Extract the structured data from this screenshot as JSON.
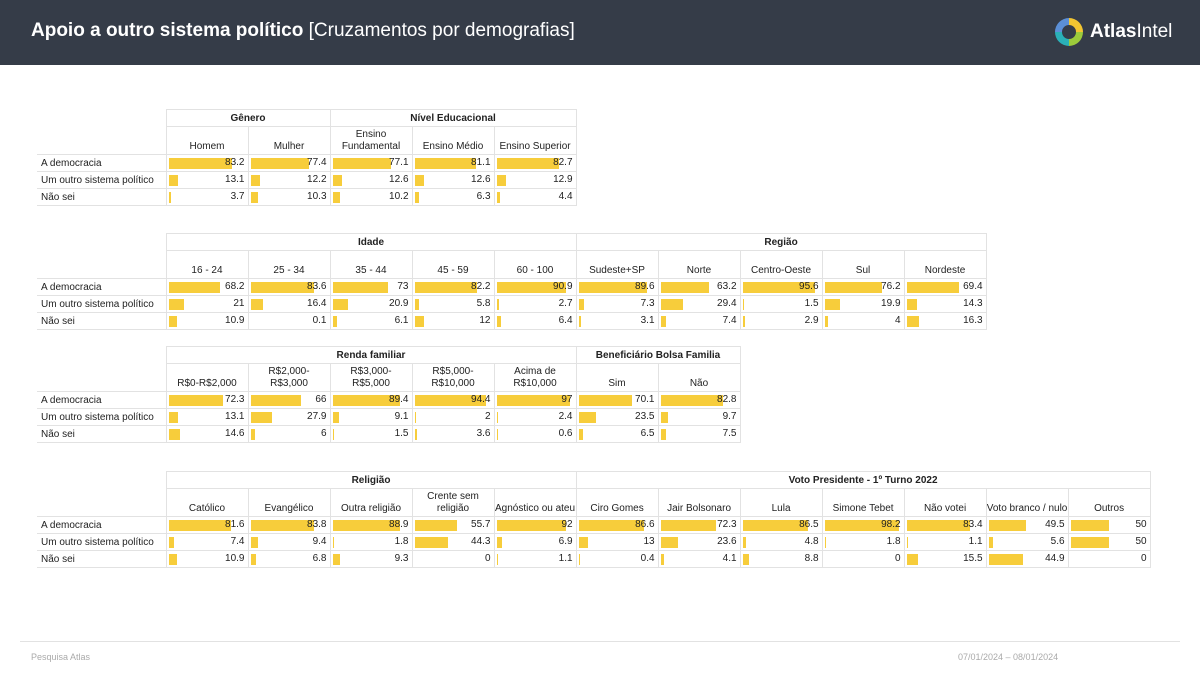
{
  "header": {
    "title_bold": "Apoio a outro sistema político",
    "title_rest": "[Cruzamentos por demografias]",
    "logo_bold": "Atlas",
    "logo_rest": "Intel"
  },
  "footer": {
    "left": "Pesquisa Atlas",
    "right": "07/01/2024 – 08/01/2024"
  },
  "colors": {
    "bar": "#f7cd3b",
    "header_bg": "#353c48"
  },
  "chart_data": [
    {
      "type": "table",
      "rows": [
        "A democracia",
        "Um outro sistema político",
        "Não sei"
      ],
      "groups": [
        {
          "title": "Gênero",
          "columns": [
            {
              "label": "Homem",
              "values": [
                83.2,
                13.1,
                3.7
              ]
            },
            {
              "label": "Mulher",
              "values": [
                77.4,
                12.2,
                10.3
              ]
            }
          ]
        },
        {
          "title": "Nível Educacional",
          "columns": [
            {
              "label": "Ensino Fundamental",
              "values": [
                77.1,
                12.6,
                10.2
              ]
            },
            {
              "label": "Ensino Médio",
              "values": [
                81.1,
                12.6,
                6.3
              ]
            },
            {
              "label": "Ensino Superior",
              "values": [
                82.7,
                12.9,
                4.4
              ]
            }
          ]
        }
      ]
    },
    {
      "type": "table",
      "rows": [
        "A democracia",
        "Um outro sistema político",
        "Não sei"
      ],
      "groups": [
        {
          "title": "Idade",
          "columns": [
            {
              "label": "16 - 24",
              "values": [
                68.2,
                21,
                10.9
              ]
            },
            {
              "label": "25 - 34",
              "values": [
                83.6,
                16.4,
                0.1
              ]
            },
            {
              "label": "35 - 44",
              "values": [
                73,
                20.9,
                6.1
              ]
            },
            {
              "label": "45 - 59",
              "values": [
                82.2,
                5.8,
                12
              ]
            },
            {
              "label": "60 - 100",
              "values": [
                90.9,
                2.7,
                6.4
              ]
            }
          ]
        },
        {
          "title": "Região",
          "columns": [
            {
              "label": "Sudeste+SP",
              "values": [
                89.6,
                7.3,
                3.1
              ]
            },
            {
              "label": "Norte",
              "values": [
                63.2,
                29.4,
                7.4
              ]
            },
            {
              "label": "Centro-Oeste",
              "values": [
                95.6,
                1.5,
                2.9
              ]
            },
            {
              "label": "Sul",
              "values": [
                76.2,
                19.9,
                4
              ]
            },
            {
              "label": "Nordeste",
              "values": [
                69.4,
                14.3,
                16.3
              ]
            }
          ]
        }
      ]
    },
    {
      "type": "table",
      "rows": [
        "A democracia",
        "Um outro sistema político",
        "Não sei"
      ],
      "groups": [
        {
          "title": "Renda familiar",
          "columns": [
            {
              "label": "R$0-R$2,000",
              "values": [
                72.3,
                13.1,
                14.6
              ]
            },
            {
              "label": "R$2,000- R$3,000",
              "values": [
                66,
                27.9,
                6
              ]
            },
            {
              "label": "R$3,000- R$5,000",
              "values": [
                89.4,
                9.1,
                1.5
              ]
            },
            {
              "label": "R$5,000- R$10,000",
              "values": [
                94.4,
                2,
                3.6
              ]
            },
            {
              "label": "Acima de R$10,000",
              "values": [
                97,
                2.4,
                0.6
              ]
            }
          ]
        },
        {
          "title": "Beneficiário Bolsa Familia",
          "columns": [
            {
              "label": "Sim",
              "values": [
                70.1,
                23.5,
                6.5
              ]
            },
            {
              "label": "Não",
              "values": [
                82.8,
                9.7,
                7.5
              ]
            }
          ]
        }
      ]
    },
    {
      "type": "table",
      "rows": [
        "A democracia",
        "Um outro sistema político",
        "Não sei"
      ],
      "groups": [
        {
          "title": "Religião",
          "columns": [
            {
              "label": "Católico",
              "values": [
                81.6,
                7.4,
                10.9
              ]
            },
            {
              "label": "Evangélico",
              "values": [
                83.8,
                9.4,
                6.8
              ]
            },
            {
              "label": "Outra religião",
              "values": [
                88.9,
                1.8,
                9.3
              ]
            },
            {
              "label": "Crente sem religião",
              "values": [
                55.7,
                44.3,
                0
              ]
            },
            {
              "label": "Agnóstico ou ateu",
              "values": [
                92,
                6.9,
                1.1
              ]
            }
          ]
        },
        {
          "title": "Voto Presidente - 1º Turno 2022",
          "columns": [
            {
              "label": "Ciro Gomes",
              "values": [
                86.6,
                13,
                0.4
              ]
            },
            {
              "label": "Jair Bolsonaro",
              "values": [
                72.3,
                23.6,
                4.1
              ]
            },
            {
              "label": "Lula",
              "values": [
                86.5,
                4.8,
                8.8
              ]
            },
            {
              "label": "Simone Tebet",
              "values": [
                98.2,
                1.8,
                0
              ]
            },
            {
              "label": "Não votei",
              "values": [
                83.4,
                1.1,
                15.5
              ]
            },
            {
              "label": "Voto branco / nulo",
              "values": [
                49.5,
                5.6,
                44.9
              ]
            },
            {
              "label": "Outros",
              "values": [
                50,
                50,
                0
              ]
            }
          ]
        }
      ]
    }
  ]
}
